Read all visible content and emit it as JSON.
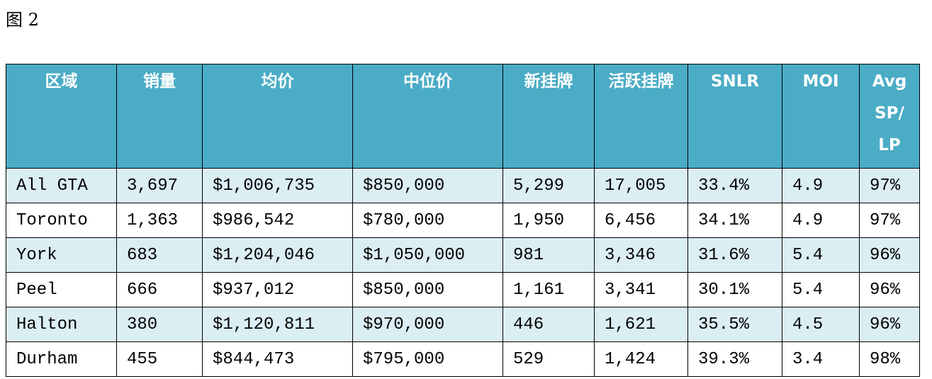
{
  "caption": "图 2",
  "table": {
    "header": [
      "区域",
      "销量",
      "均价",
      "中位价",
      "新挂牌",
      "活跃挂牌",
      "SNLR",
      "MOI",
      "Avg SP/ LP"
    ],
    "rows": [
      [
        "All GTA",
        "3,697",
        "$1,006,735",
        "$850,000",
        "5,299",
        "17,005",
        "33.4%",
        "4.9",
        "97%"
      ],
      [
        "Toronto",
        "1,363",
        "$986,542",
        "$780,000",
        "1,950",
        "6,456",
        "34.1%",
        "4.9",
        "97%"
      ],
      [
        "York",
        "683",
        "$1,204,046",
        "$1,050,000",
        "981",
        "3,346",
        "31.6%",
        "5.4",
        "96%"
      ],
      [
        "Peel",
        "666",
        "$937,012",
        "$850,000",
        "1,161",
        "3,341",
        "30.1%",
        "5.4",
        "96%"
      ],
      [
        "Halton",
        "380",
        "$1,120,811",
        "$970,000",
        "446",
        "1,621",
        "35.5%",
        "4.5",
        "96%"
      ],
      [
        "Durham",
        "455",
        "$844,473",
        "$795,000",
        "529",
        "1,424",
        "39.3%",
        "3.4",
        "98%"
      ]
    ]
  }
}
